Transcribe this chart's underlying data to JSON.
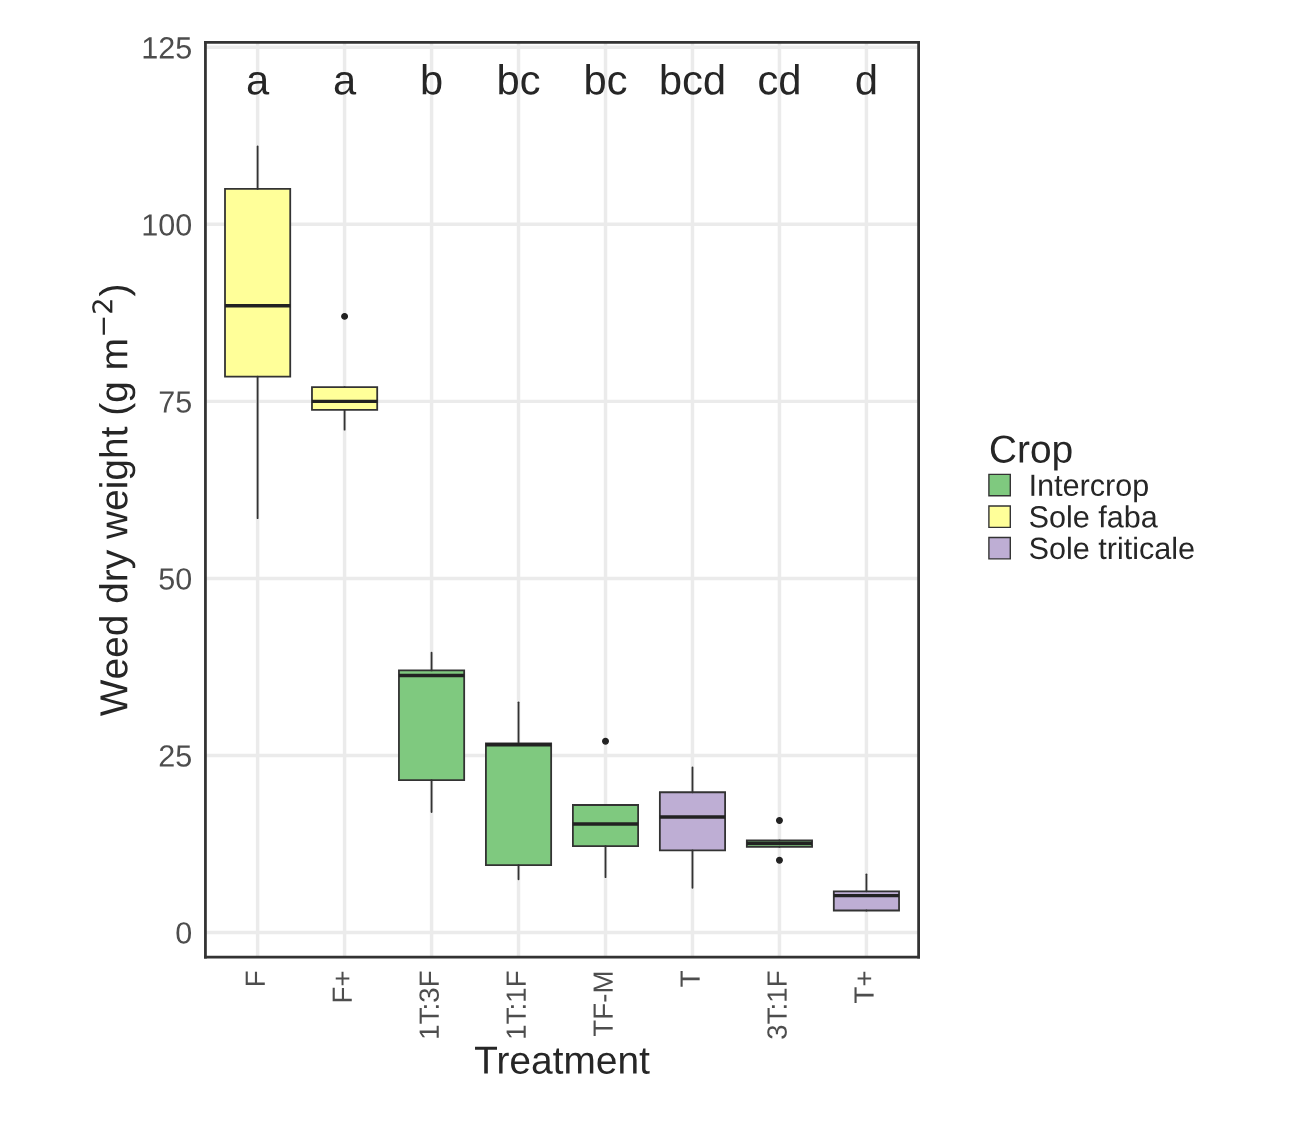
{
  "chart_data": {
    "type": "box",
    "xlabel": "Treatment",
    "ylabel": "Weed dry weight (g m$^{−2}$)",
    "legend_title": "Crop",
    "legend": "right",
    "categories": [
      "F",
      "F+",
      "1T:3F",
      "1T:1F",
      "TF-M",
      "T",
      "3T:1F",
      "T+"
    ],
    "ylim": [
      -3.5,
      125.7
    ],
    "yticks": [
      0,
      25,
      50,
      75,
      100,
      125
    ],
    "grid": true,
    "series": [
      {
        "name": "Intercrop",
        "color": "#7fc97f",
        "boxes": [
          null,
          null,
          {
            "low": 17,
            "q1": 21.5,
            "median": 36.3,
            "q3": 37,
            "high": 39.5
          },
          {
            "low": 7.5,
            "q1": 9.5,
            "median": 26.5,
            "q3": 26.7,
            "high": 32.5
          },
          {
            "low": 7.8,
            "q1": 12.2,
            "median": 15.3,
            "q3": 18,
            "high": 18,
            "outliers": [
              27
            ]
          },
          null,
          {
            "low": 12.1,
            "q1": 12.1,
            "median": 12.6,
            "q3": 13,
            "high": 13,
            "outliers": [
              15.8,
              10.2
            ]
          },
          null
        ]
      },
      {
        "name": "Sole faba",
        "color": "#ffff99",
        "boxes": [
          {
            "low": 58.5,
            "q1": 78.5,
            "median": 88.5,
            "q3": 105,
            "high": 111
          },
          {
            "low": 71,
            "q1": 73.8,
            "median": 75,
            "q3": 77,
            "high": 77,
            "outliers": [
              87
            ]
          },
          null,
          null,
          null,
          null,
          null,
          null
        ]
      },
      {
        "name": "Sole triticale",
        "color": "#beaed4",
        "boxes": [
          null,
          null,
          null,
          null,
          null,
          {
            "low": 6.3,
            "q1": 11.6,
            "median": 16.3,
            "q3": 19.8,
            "high": 23.3
          },
          null,
          {
            "low": 3.1,
            "q1": 3.1,
            "median": 5.2,
            "q3": 5.8,
            "high": 8.2
          }
        ]
      }
    ],
    "annotations": [
      "a",
      "a",
      "b",
      "bc",
      "bc",
      "bcd",
      "cd",
      "d"
    ]
  }
}
